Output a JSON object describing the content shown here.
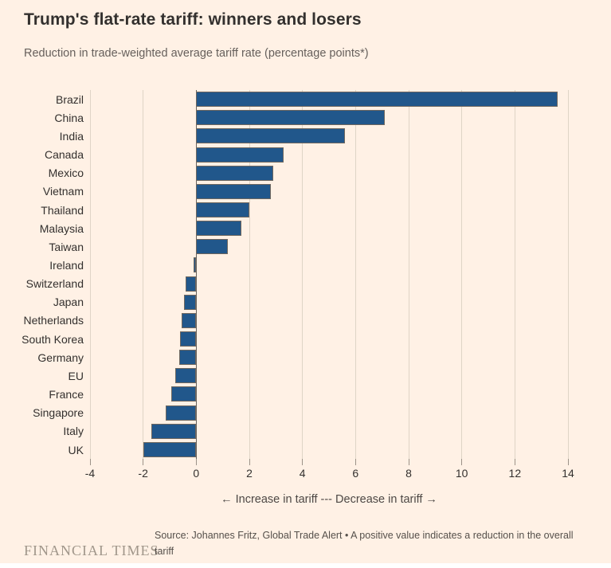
{
  "header": {
    "title": "Trump's flat-rate tariff: winners and losers",
    "subtitle": "Reduction in trade-weighted average tariff rate (percentage points*)"
  },
  "chart_data": {
    "type": "bar",
    "orientation": "horizontal",
    "title": "Trump's flat-rate tariff: winners and losers",
    "subtitle": "Reduction in trade-weighted average tariff rate (percentage points*)",
    "categories": [
      "Brazil",
      "China",
      "India",
      "Canada",
      "Mexico",
      "Vietnam",
      "Thailand",
      "Malaysia",
      "Taiwan",
      "Ireland",
      "Switzerland",
      "Japan",
      "Netherlands",
      "South Korea",
      "Germany",
      "EU",
      "France",
      "Singapore",
      "Italy",
      "UK"
    ],
    "values": [
      13.6,
      7.1,
      5.6,
      3.3,
      2.9,
      2.8,
      2.0,
      1.7,
      1.2,
      -0.1,
      -0.4,
      -0.45,
      -0.55,
      -0.6,
      -0.65,
      -0.8,
      -0.95,
      -1.15,
      -1.7,
      -2.0
    ],
    "xlim": [
      -4,
      14
    ],
    "xticks": [
      -4,
      -2,
      0,
      2,
      4,
      6,
      8,
      10,
      12,
      14
    ],
    "grid": true,
    "legend": false,
    "direction_caption": "← Increase in tariff --- Decrease in tariff →",
    "colors": {
      "bar": "#21578B",
      "bar_border": "#6E675F",
      "gridline": "#DFD4C6",
      "zero_line": "#66605C",
      "tick": "#9C9288",
      "background": "#FFF1E5"
    }
  },
  "footer": {
    "logo": "FINANCIAL TIMES",
    "source": "Source: Johannes Fritz, Global Trade Alert • A positive value indicates a reduction in the overall tariff"
  }
}
